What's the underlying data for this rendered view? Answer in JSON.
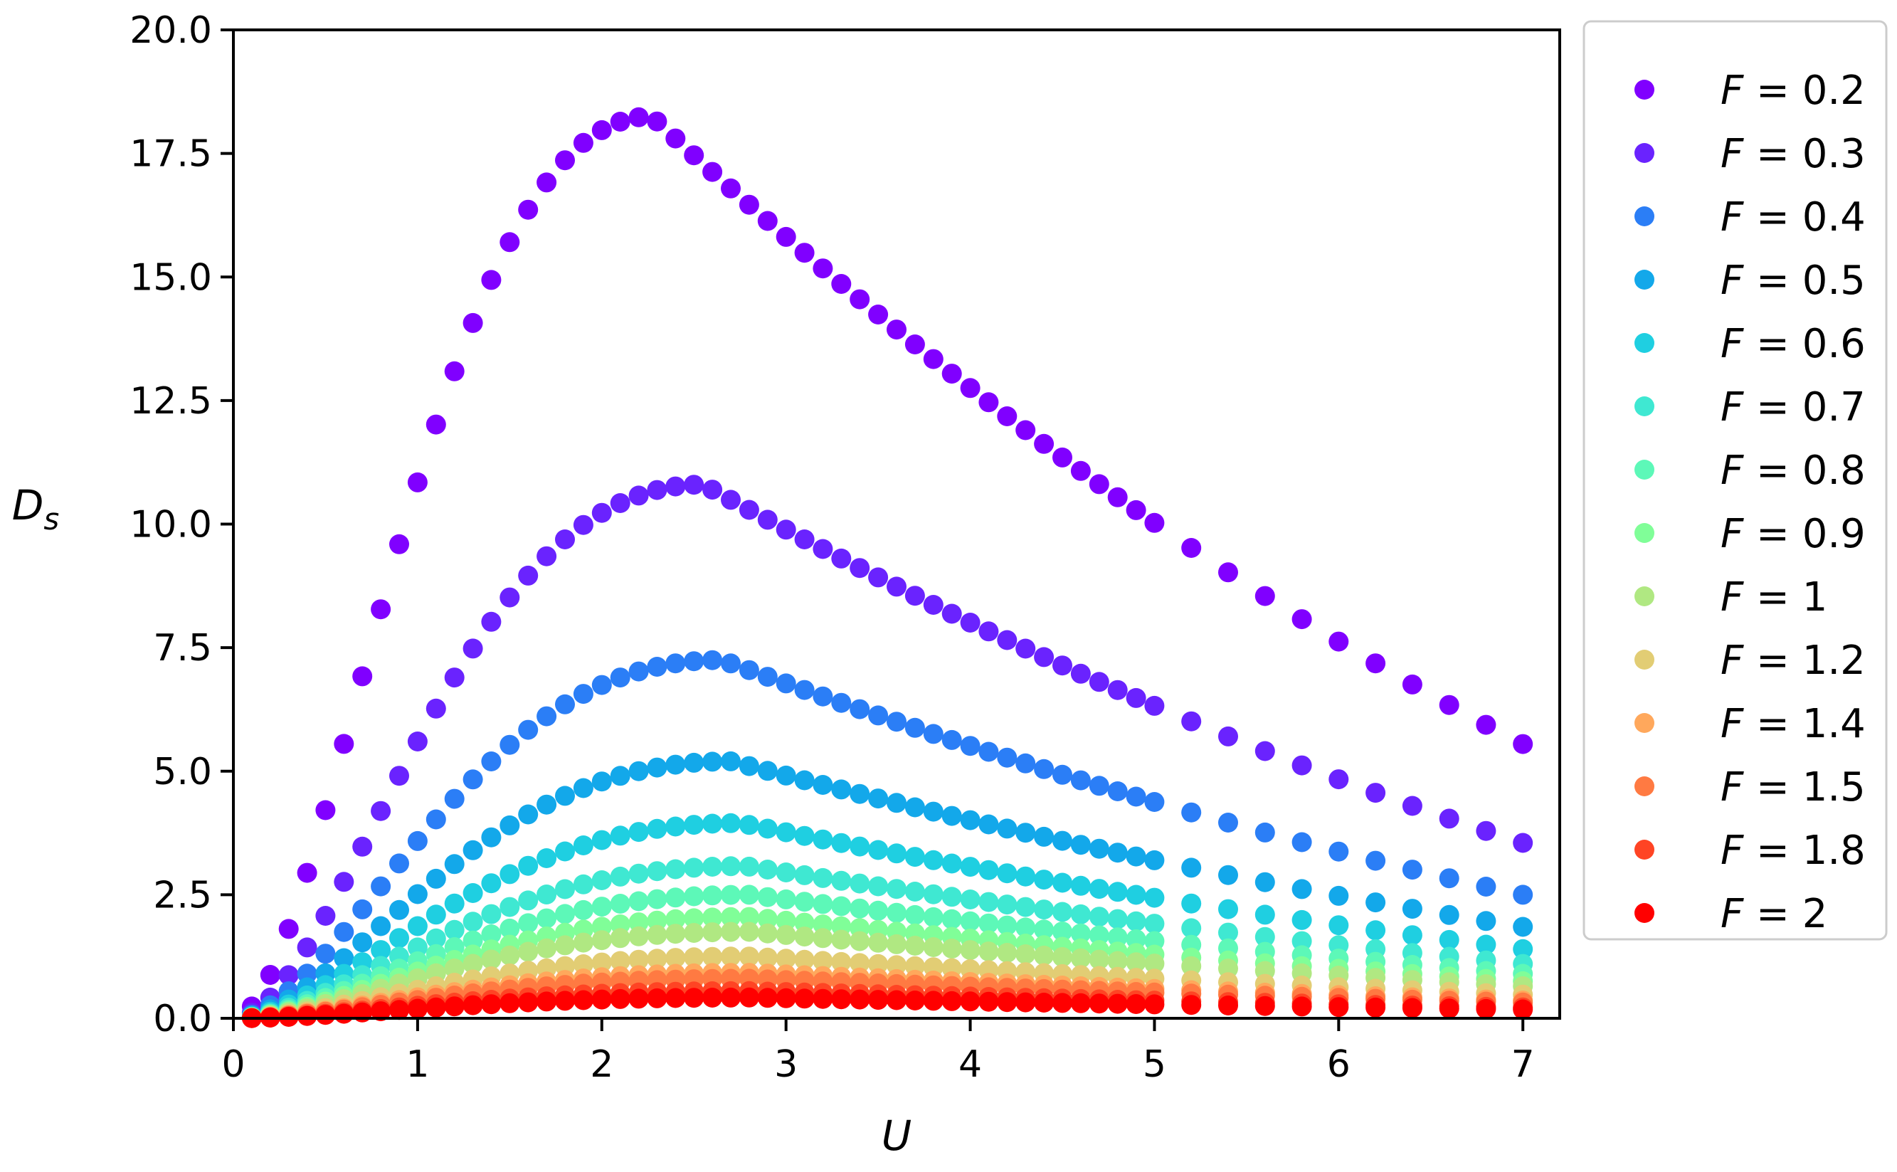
{
  "chart_data": {
    "type": "scatter",
    "title": "",
    "xlabel": "U",
    "ylabel_main": "D",
    "ylabel_sub": "s",
    "xlim": [
      0,
      7.2
    ],
    "ylim": [
      0,
      20
    ],
    "xticks": [
      0,
      1,
      2,
      3,
      4,
      5,
      6,
      7
    ],
    "xtick_labels": [
      "0",
      "1",
      "2",
      "3",
      "4",
      "5",
      "6",
      "7"
    ],
    "yticks": [
      0,
      2.5,
      5,
      7.5,
      10,
      12.5,
      15,
      17.5,
      20
    ],
    "ytick_labels": [
      "0.0",
      "2.5",
      "5.0",
      "7.5",
      "10.0",
      "12.5",
      "15.0",
      "17.5",
      "20.0"
    ],
    "grid": false,
    "legend_position": "outside-right",
    "x": [
      0.1,
      0.2,
      0.3,
      0.4,
      0.5,
      0.6,
      0.7,
      0.8,
      0.9,
      1.0,
      1.1,
      1.2,
      1.3,
      1.4,
      1.5,
      1.6,
      1.7,
      1.8,
      1.9,
      2.0,
      2.1,
      2.2,
      2.3,
      2.4,
      2.5,
      2.6,
      2.7,
      2.8,
      2.9,
      3.0,
      3.1,
      3.2,
      3.3,
      3.4,
      3.5,
      3.6,
      3.7,
      3.8,
      3.9,
      4.0,
      4.1,
      4.2,
      4.3,
      4.4,
      4.5,
      4.6,
      4.7,
      4.8,
      4.9,
      5.0,
      5.2,
      5.4,
      5.6,
      5.8,
      6.0,
      6.2,
      6.4,
      6.6,
      6.8,
      7.0
    ],
    "series": [
      {
        "name": "F = 0.2",
        "F_symbol": "F",
        "F_value": "0.2",
        "color": "#8000ff",
        "peak": 18.25,
        "peak_u": 2.27,
        "tail": 5.55
      },
      {
        "name": "F = 0.3",
        "F_symbol": "F",
        "F_value": "0.3",
        "color": "#6a23fe",
        "peak": 10.8,
        "peak_u": 2.55,
        "tail": 3.55
      },
      {
        "name": "F = 0.4",
        "F_symbol": "F",
        "F_value": "0.4",
        "color": "#2b7ef6",
        "peak": 7.25,
        "peak_u": 2.65,
        "tail": 2.5
      },
      {
        "name": "F = 0.5",
        "F_symbol": "F",
        "F_value": "0.5",
        "color": "#13a8ea",
        "peak": 5.2,
        "peak_u": 2.7,
        "tail": 1.85
      },
      {
        "name": "F = 0.6",
        "F_symbol": "F",
        "F_value": "0.6",
        "color": "#1fcfe1",
        "peak": 3.95,
        "peak_u": 2.75,
        "tail": 1.4
      },
      {
        "name": "F = 0.7",
        "F_symbol": "F",
        "F_value": "0.7",
        "color": "#3fe8d2",
        "peak": 3.08,
        "peak_u": 2.78,
        "tail": 1.1
      },
      {
        "name": "F = 0.8",
        "F_symbol": "F",
        "F_value": "0.8",
        "color": "#5df8b8",
        "peak": 2.5,
        "peak_u": 2.8,
        "tail": 0.9
      },
      {
        "name": "F = 0.9",
        "F_symbol": "F",
        "F_value": "0.9",
        "color": "#80fe98",
        "peak": 2.05,
        "peak_u": 2.8,
        "tail": 0.75
      },
      {
        "name": "F = 1",
        "F_symbol": "F",
        "F_value": "1",
        "color": "#b0e882",
        "peak": 1.75,
        "peak_u": 2.8,
        "tail": 0.65
      },
      {
        "name": "F = 1.2",
        "F_symbol": "F",
        "F_value": "1.2",
        "color": "#e2cd74",
        "peak": 1.25,
        "peak_u": 2.8,
        "tail": 0.48
      },
      {
        "name": "F = 1.4",
        "F_symbol": "F",
        "F_value": "1.4",
        "color": "#ffa85c",
        "peak": 0.92,
        "peak_u": 2.8,
        "tail": 0.36
      },
      {
        "name": "F = 1.5",
        "F_symbol": "F",
        "F_value": "1.5",
        "color": "#ff7a42",
        "peak": 0.8,
        "peak_u": 2.8,
        "tail": 0.32
      },
      {
        "name": "F = 1.8",
        "F_symbol": "F",
        "F_value": "1.8",
        "color": "#ff4424",
        "peak": 0.55,
        "peak_u": 2.8,
        "tail": 0.22
      },
      {
        "name": "F = 2",
        "F_symbol": "F",
        "F_value": "2",
        "color": "#ff0000",
        "peak": 0.42,
        "peak_u": 2.8,
        "tail": 0.18
      }
    ]
  }
}
